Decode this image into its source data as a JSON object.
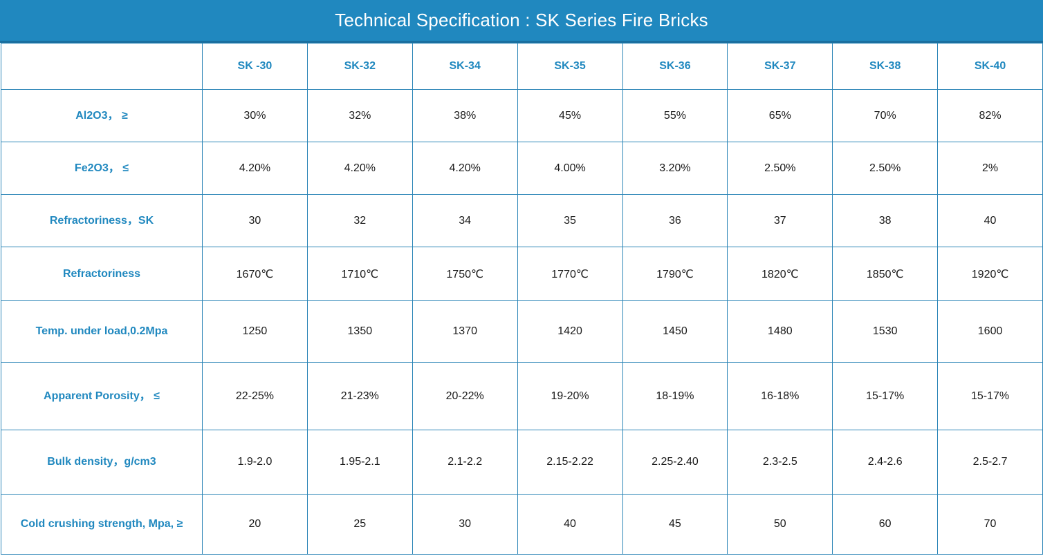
{
  "title": "Technical Specification : SK Series Fire Bricks",
  "columns": [
    "SK -30",
    "SK-32",
    "SK-34",
    "SK-35",
    "SK-36",
    "SK-37",
    "SK-38",
    "SK-40"
  ],
  "rows": [
    {
      "label": "Al2O3， ≥",
      "values": [
        "30%",
        "32%",
        "38%",
        "45%",
        "55%",
        "65%",
        "70%",
        "82%"
      ]
    },
    {
      "label": "Fe2O3， ≤",
      "values": [
        "4.20%",
        "4.20%",
        "4.20%",
        "4.00%",
        "3.20%",
        "2.50%",
        "2.50%",
        "2%"
      ]
    },
    {
      "label": "Refractoriness，SK",
      "values": [
        "30",
        "32",
        "34",
        "35",
        "36",
        "37",
        "38",
        "40"
      ]
    },
    {
      "label": "Refractoriness",
      "values": [
        "1670℃",
        "1710℃",
        "1750℃",
        "1770℃",
        "1790℃",
        "1820℃",
        "1850℃",
        "1920℃"
      ]
    },
    {
      "label": "Temp. under load,0.2Mpa",
      "values": [
        "1250",
        "1350",
        "1370",
        "1420",
        "1450",
        "1480",
        "1530",
        "1600"
      ]
    },
    {
      "label": "Apparent Porosity， ≤",
      "values": [
        "22-25%",
        "21-23%",
        "20-22%",
        "19-20%",
        "18-19%",
        "16-18%",
        "15-17%",
        "15-17%"
      ]
    },
    {
      "label": "Bulk density，g/cm3",
      "values": [
        "1.9-2.0",
        "1.95-2.1",
        "2.1-2.2",
        "2.15-2.22",
        "2.25-2.40",
        "2.3-2.5",
        "2.4-2.6",
        "2.5-2.7"
      ]
    },
    {
      "label": "Cold crushing strength, Mpa, ≥",
      "values": [
        "20",
        "25",
        "30",
        "40",
        "45",
        "50",
        "60",
        "70"
      ]
    }
  ],
  "colors": {
    "accent": "#2088bf",
    "title_text": "#ffffff",
    "cell_text": "#1a1a1a"
  }
}
